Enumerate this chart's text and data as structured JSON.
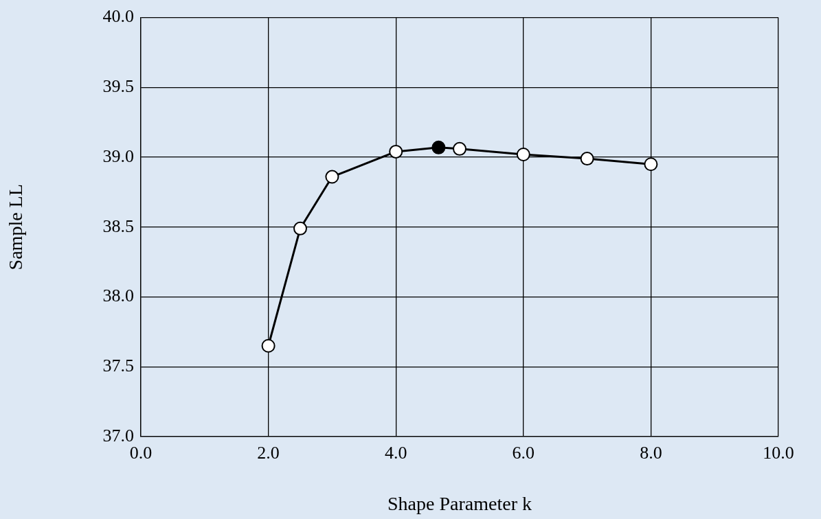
{
  "chart_data": {
    "type": "line",
    "xlabel": "Shape Parameter k",
    "ylabel": "Sample LL",
    "xlim": [
      0,
      10
    ],
    "ylim": [
      37,
      40
    ],
    "xticks": [
      {
        "value": 0,
        "label": "0.0"
      },
      {
        "value": 2,
        "label": "2.0"
      },
      {
        "value": 4,
        "label": "4.0"
      },
      {
        "value": 6,
        "label": "6.0"
      },
      {
        "value": 8,
        "label": "8.0"
      },
      {
        "value": 10,
        "label": "10.0"
      }
    ],
    "yticks": [
      {
        "value": 37,
        "label": "37.0"
      },
      {
        "value": 37.5,
        "label": "37.5"
      },
      {
        "value": 38,
        "label": "38.0"
      },
      {
        "value": 38.5,
        "label": "38.5"
      },
      {
        "value": 39,
        "label": "39.0"
      },
      {
        "value": 39.5,
        "label": "39.5"
      },
      {
        "value": 40,
        "label": "40.0"
      }
    ],
    "grid": true,
    "legend": false,
    "marker": "circle",
    "line_style": "solid",
    "series": [
      {
        "color": "#000000",
        "x": [
          2.0,
          2.5,
          3.0,
          4.0,
          4.67,
          5.0,
          6.0,
          7.0,
          8.0
        ],
        "values": [
          37.65,
          38.49,
          38.86,
          39.04,
          39.07,
          39.06,
          39.02,
          38.99,
          38.95
        ],
        "colors": [
          "#ffffff",
          "#ffffff",
          "#ffffff",
          "#ffffff",
          "#000000",
          "#ffffff",
          "#ffffff",
          "#ffffff",
          "#ffffff"
        ]
      }
    ]
  }
}
